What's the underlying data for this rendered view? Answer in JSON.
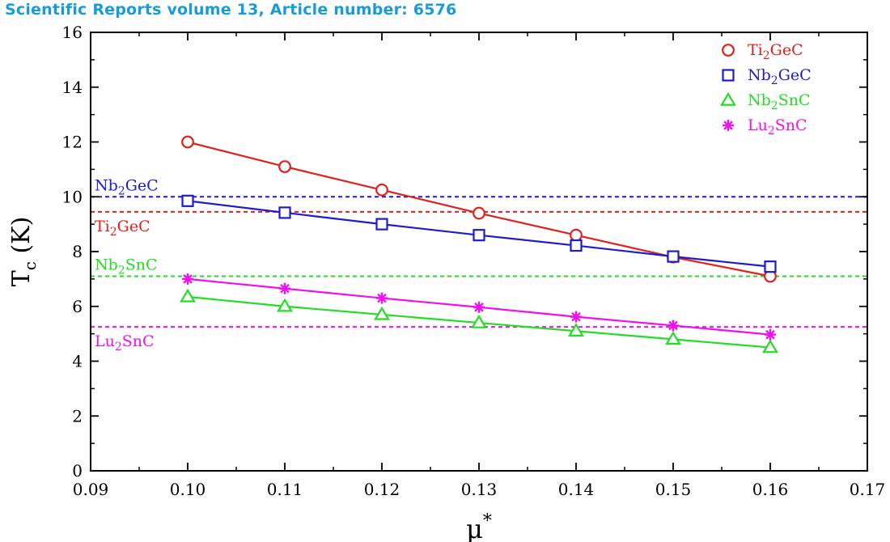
{
  "header": {
    "text": "Scientific Reports volume 13, Article number: 6576"
  },
  "chart_data": {
    "type": "line",
    "title": "",
    "xlabel": {
      "main": "μ",
      "sup": "*"
    },
    "ylabel": {
      "main": "T",
      "sub": "c",
      "rest": " (K)"
    },
    "xlim": [
      0.09,
      0.17
    ],
    "ylim": [
      0,
      16
    ],
    "xticks": [
      0.09,
      0.1,
      0.11,
      0.12,
      0.13,
      0.14,
      0.15,
      0.16,
      0.17
    ],
    "xtick_labels": [
      "0.09",
      "0.10",
      "0.11",
      "0.12",
      "0.13",
      "0.14",
      "0.15",
      "0.16",
      "0.17"
    ],
    "yticks": [
      0,
      2,
      4,
      6,
      8,
      10,
      12,
      14,
      16
    ],
    "ytick_labels": [
      "0",
      "2",
      "4",
      "6",
      "8",
      "10",
      "12",
      "14",
      "16"
    ],
    "grid": false,
    "legend_position": "top-right",
    "x": [
      0.1,
      0.11,
      0.12,
      0.13,
      0.14,
      0.15,
      0.16
    ],
    "series": [
      {
        "name": "Ti2GeC",
        "label_main": "Ti",
        "label_sub": "2",
        "label_rest": "GeC",
        "marker": "circle",
        "color": "#e0201c",
        "values": [
          12.0,
          11.1,
          10.25,
          9.4,
          8.6,
          7.8,
          7.1
        ]
      },
      {
        "name": "Nb2GeC",
        "label_main": "Nb",
        "label_sub": "2",
        "label_rest": "GeC",
        "marker": "square",
        "color": "#1c1ccc",
        "values": [
          9.85,
          9.42,
          9.0,
          8.6,
          8.22,
          7.82,
          7.45
        ]
      },
      {
        "name": "Nb2SnC",
        "label_main": "Nb",
        "label_sub": "2",
        "label_rest": "SnC",
        "marker": "triangle",
        "color": "#22dd22",
        "values": [
          6.35,
          6.0,
          5.7,
          5.4,
          5.1,
          4.8,
          4.5
        ]
      },
      {
        "name": "Lu2SnC",
        "label_main": "Lu",
        "label_sub": "2",
        "label_rest": "SnC",
        "marker": "star",
        "color": "#ee11ee",
        "values": [
          7.0,
          6.65,
          6.3,
          5.97,
          5.62,
          5.3,
          4.97
        ]
      }
    ],
    "reference_lines": [
      {
        "name": "Nb2GeC",
        "label_main": "Nb",
        "label_sub": "2",
        "label_rest": "GeC",
        "y": 10.0,
        "color": "#1c1ccc"
      },
      {
        "name": "Ti2GeC",
        "label_main": "Ti",
        "label_sub": "2",
        "label_rest": "GeC",
        "y": 9.45,
        "color": "#e0201c"
      },
      {
        "name": "Nb2SnC",
        "label_main": "Nb",
        "label_sub": "2",
        "label_rest": "SnC",
        "y": 7.1,
        "color": "#22dd22"
      },
      {
        "name": "Lu2SnC",
        "label_main": "Lu",
        "label_sub": "2",
        "label_rest": "SnC",
        "y": 5.25,
        "color": "#ee11ee"
      }
    ]
  }
}
